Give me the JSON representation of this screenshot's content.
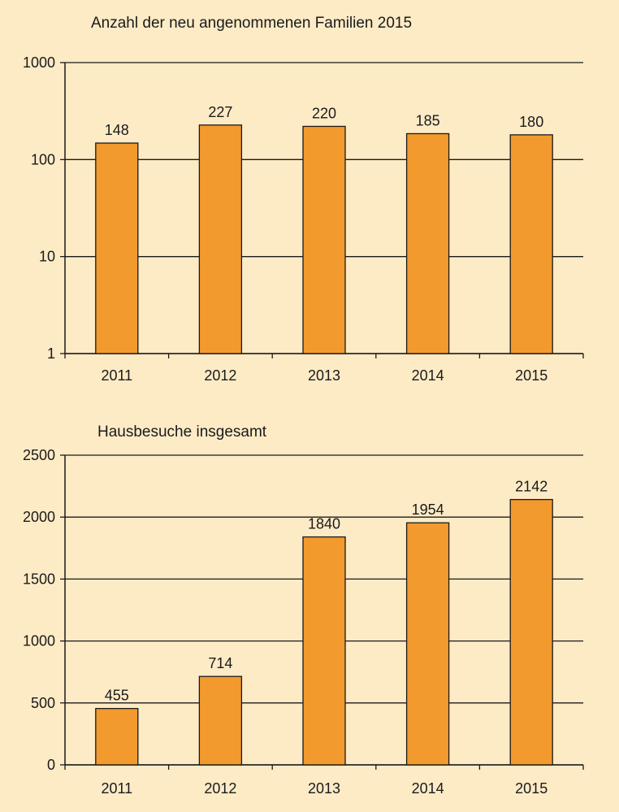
{
  "colors": {
    "background": "#FDEBC6",
    "bar": "#F29A2E",
    "stroke": "#1a1a1a"
  },
  "chart_data": [
    {
      "type": "bar",
      "title": "Anzahl der neu angenommenen Familien 2015",
      "xlabel": "",
      "ylabel": "",
      "categories": [
        "2011",
        "2012",
        "2013",
        "2014",
        "2015"
      ],
      "values": [
        148,
        227,
        220,
        185,
        180
      ],
      "data_labels": [
        "148",
        "227",
        "220",
        "185",
        "180"
      ],
      "y_scale": "log",
      "ylim": [
        1,
        1000
      ],
      "y_ticks": [
        1,
        10,
        100,
        1000
      ],
      "y_tick_labels": [
        "1",
        "10",
        "100",
        "1000"
      ],
      "grid": true,
      "legend": "none"
    },
    {
      "type": "bar",
      "title": "Hausbesuche insgesamt",
      "xlabel": "",
      "ylabel": "",
      "categories": [
        "2011",
        "2012",
        "2013",
        "2014",
        "2015"
      ],
      "values": [
        455,
        714,
        1840,
        1954,
        2142
      ],
      "data_labels": [
        "455",
        "714",
        "1840",
        "1954",
        "2142"
      ],
      "y_scale": "linear",
      "ylim": [
        0,
        2500
      ],
      "y_ticks": [
        0,
        500,
        1000,
        1500,
        2000,
        2500
      ],
      "y_tick_labels": [
        "0",
        "500",
        "1000",
        "1500",
        "2000",
        "2500"
      ],
      "grid": true,
      "legend": "none"
    }
  ]
}
